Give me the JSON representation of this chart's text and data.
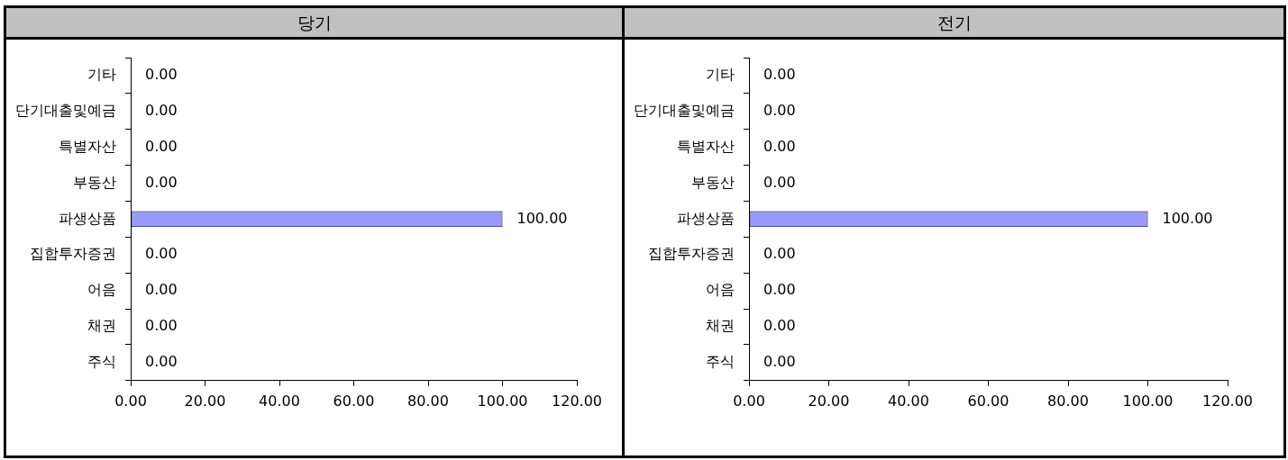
{
  "chart_data": [
    {
      "type": "bar",
      "title": "당기",
      "orientation": "horizontal",
      "categories": [
        "기타",
        "단기대출및예금",
        "특별자산",
        "부동산",
        "파생상품",
        "집합투자증권",
        "어음",
        "채권",
        "주식"
      ],
      "values": [
        0,
        0,
        0,
        0,
        100,
        0,
        0,
        0,
        0
      ],
      "value_labels": [
        "0.00",
        "0.00",
        "0.00",
        "0.00",
        "100.00",
        "0.00",
        "0.00",
        "0.00",
        "0.00"
      ],
      "color": "#9999ff",
      "xlim": [
        0,
        120
      ],
      "xticks": [
        {
          "value": 0,
          "label": "0.00"
        },
        {
          "value": 20,
          "label": "20.00"
        },
        {
          "value": 40,
          "label": "40.00"
        },
        {
          "value": 60,
          "label": "60.00"
        },
        {
          "value": 80,
          "label": "80.00"
        },
        {
          "value": 100,
          "label": "100.00"
        },
        {
          "value": 120,
          "label": "120.00"
        }
      ],
      "grid": false,
      "legend": false
    },
    {
      "type": "bar",
      "title": "전기",
      "orientation": "horizontal",
      "categories": [
        "기타",
        "단기대출및예금",
        "특별자산",
        "부동산",
        "파생상품",
        "집합투자증권",
        "어음",
        "채권",
        "주식"
      ],
      "values": [
        0,
        0,
        0,
        0,
        100,
        0,
        0,
        0,
        0
      ],
      "value_labels": [
        "0.00",
        "0.00",
        "0.00",
        "0.00",
        "100.00",
        "0.00",
        "0.00",
        "0.00",
        "0.00"
      ],
      "color": "#9999ff",
      "xlim": [
        0,
        120
      ],
      "xticks": [
        {
          "value": 0,
          "label": "0.00"
        },
        {
          "value": 20,
          "label": "20.00"
        },
        {
          "value": 40,
          "label": "40.00"
        },
        {
          "value": 60,
          "label": "60.00"
        },
        {
          "value": 80,
          "label": "80.00"
        },
        {
          "value": 100,
          "label": "100.00"
        },
        {
          "value": 120,
          "label": "120.00"
        }
      ],
      "grid": false,
      "legend": false
    }
  ]
}
